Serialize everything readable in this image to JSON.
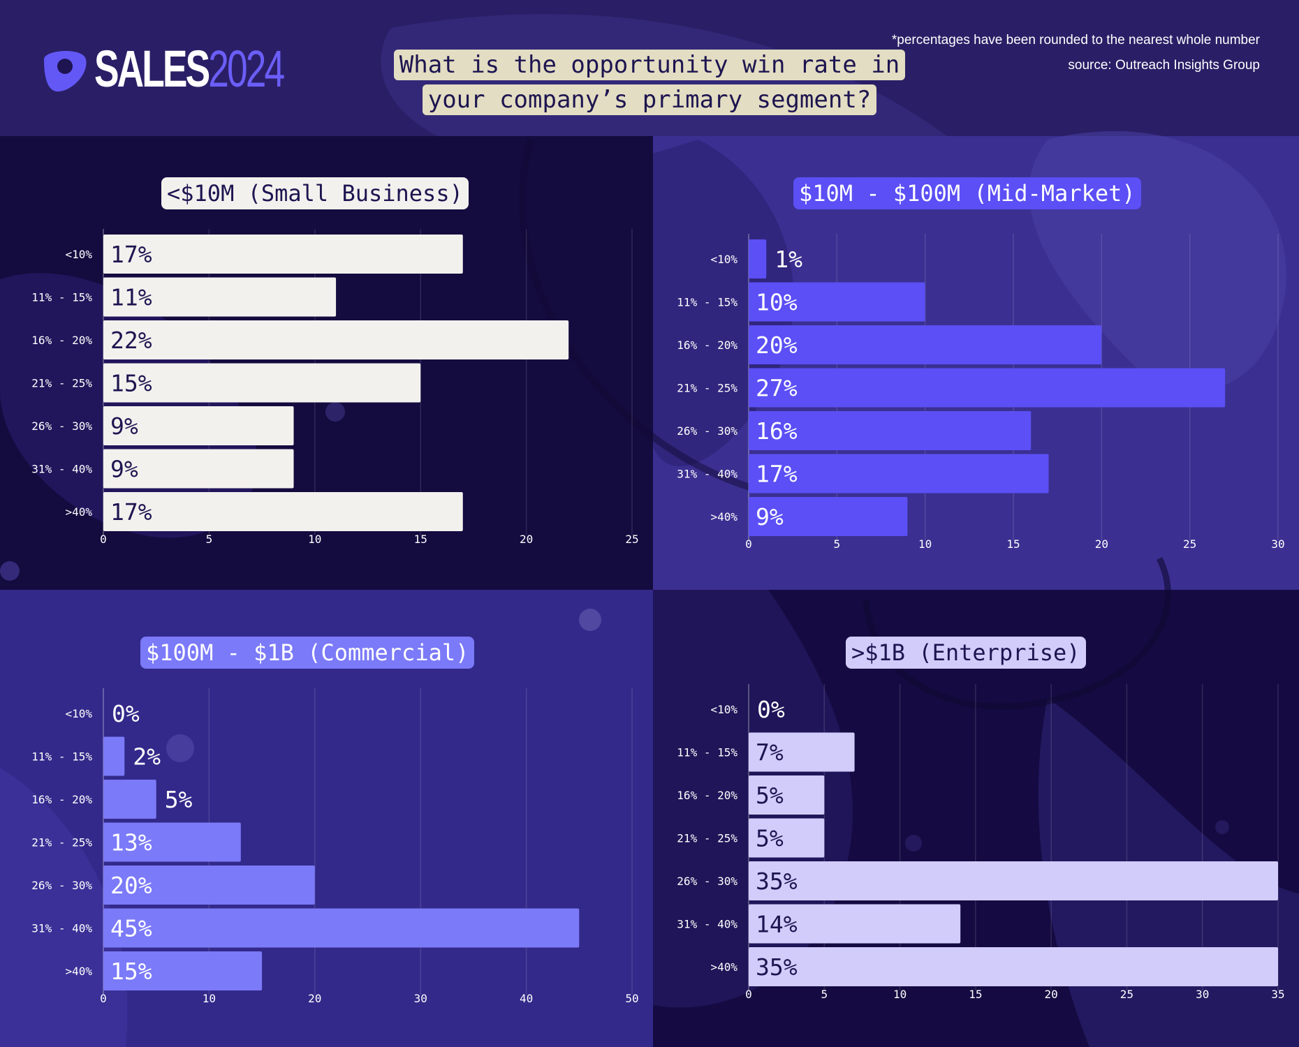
{
  "header": {
    "logo_word": "SALES",
    "logo_year": "2024",
    "title": "What is the opportunity win rate in your company’s primary segment?",
    "footnote": "*percentages have been rounded to the nearest whole number",
    "source": "source: Outreach Insights Group"
  },
  "colors": {
    "background": "#1e1452",
    "small_business": "#f3f1ee",
    "mid_market": "#5b4ff5",
    "commercial": "#7b7af8",
    "enterprise": "#d2ccfb",
    "title_highlight": "#e3ddc3"
  },
  "chart_data": [
    {
      "type": "bar",
      "orientation": "horizontal",
      "title": "<$10M (Small Business)",
      "categories": [
        "<10%",
        "11% - 15%",
        "16% - 20%",
        "21% - 25%",
        "26% - 30%",
        "31% - 40%",
        ">40%"
      ],
      "values": [
        17,
        11,
        22,
        15,
        9,
        9,
        17
      ],
      "value_labels": [
        "17%",
        "11%",
        "22%",
        "15%",
        "9%",
        "9%",
        "17%"
      ],
      "xlim": [
        0,
        25
      ],
      "x_ticks": [
        0,
        5,
        10,
        15,
        20,
        25
      ],
      "grid": true
    },
    {
      "type": "bar",
      "orientation": "horizontal",
      "title": "$10M - $100M (Mid-Market)",
      "categories": [
        "<10%",
        "11% - 15%",
        "16% - 20%",
        "21% - 25%",
        "26% - 30%",
        "31% - 40%",
        ">40%"
      ],
      "values": [
        1,
        10,
        20,
        27,
        16,
        17,
        9
      ],
      "value_labels": [
        "1%",
        "10%",
        "20%",
        "27%",
        "16%",
        "17%",
        "9%"
      ],
      "xlim": [
        0,
        30
      ],
      "x_ticks": [
        0,
        5,
        10,
        15,
        20,
        25,
        30
      ],
      "grid": true
    },
    {
      "type": "bar",
      "orientation": "horizontal",
      "title": "$100M - $1B (Commercial)",
      "categories": [
        "<10%",
        "11% - 15%",
        "16% - 20%",
        "21% - 25%",
        "26% - 30%",
        "31% - 40%",
        ">40%"
      ],
      "values": [
        0,
        2,
        5,
        13,
        20,
        45,
        15
      ],
      "value_labels": [
        "0%",
        "2%",
        "5%",
        "13%",
        "20%",
        "45%",
        "15%"
      ],
      "xlim": [
        0,
        50
      ],
      "x_ticks": [
        0,
        10,
        20,
        30,
        40,
        50
      ],
      "grid": true
    },
    {
      "type": "bar",
      "orientation": "horizontal",
      "title": ">$1B (Enterprise)",
      "categories": [
        "<10%",
        "11% - 15%",
        "16% - 20%",
        "21% - 25%",
        "26% - 30%",
        "31% - 40%",
        ">40%"
      ],
      "values": [
        0,
        7,
        5,
        5,
        35,
        14,
        35
      ],
      "value_labels": [
        "0%",
        "7%",
        "5%",
        "5%",
        "35%",
        "14%",
        "35%"
      ],
      "xlim": [
        0,
        35
      ],
      "x_ticks": [
        0,
        5,
        10,
        15,
        20,
        25,
        30,
        35
      ],
      "grid": true
    }
  ]
}
